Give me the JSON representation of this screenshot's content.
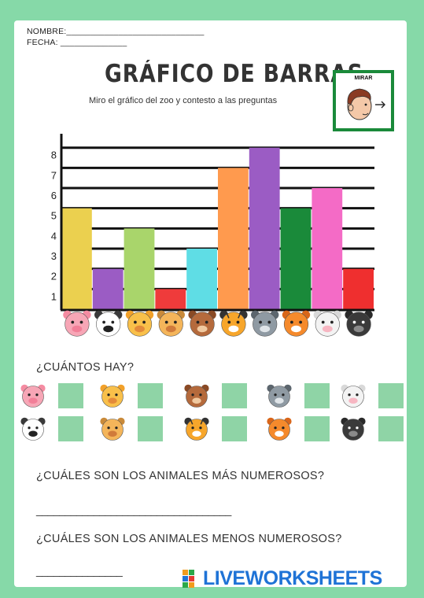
{
  "header": {
    "nombre": "NOMBRE:_____________________________",
    "fecha": "FECHA: ______________"
  },
  "title": "GRÁFICO DE BARRAS",
  "subtitle": "Miro el gráfico del zoo y contesto a las preguntas",
  "badge": {
    "label": "MIRAR",
    "icon": "face-looking-right-icon"
  },
  "chart_data": {
    "type": "bar",
    "categories": [
      "pig",
      "dog",
      "cat",
      "lion",
      "bear",
      "tiger",
      "wolf",
      "fox",
      "cow",
      "gorilla"
    ],
    "values": [
      5,
      2,
      4,
      1,
      3,
      7,
      8,
      5,
      6,
      2
    ],
    "colors": [
      "#ebd04f",
      "#9b5cc4",
      "#a9d56b",
      "#ef3b3b",
      "#5fdde5",
      "#ff9a4e",
      "#9b5cc4",
      "#1a8a3a",
      "#f46bc6",
      "#ef2f2f"
    ],
    "yticks": [
      "1",
      "2",
      "3",
      "4",
      "5",
      "6",
      "7",
      "8"
    ],
    "ylim": [
      0,
      8.3
    ]
  },
  "questions": {
    "count": "¿CUÁNTOS HAY?",
    "most": "¿CUÁLES SON LOS ANIMALES MÁS NUMEROSOS?",
    "least": "¿CUÁLES SON LOS ANIMALES MENOS NUMEROSOS?",
    "answer_line_1": "__________________________________",
    "answer_line_2": "_______________"
  },
  "count_grid": [
    {
      "animal": "pig"
    },
    {
      "animal": "cat"
    },
    {
      "animal": "bear"
    },
    {
      "animal": "wolf"
    },
    {
      "animal": "cow"
    },
    {
      "animal": "dog"
    },
    {
      "animal": "lion"
    },
    {
      "animal": "tiger"
    },
    {
      "animal": "fox"
    },
    {
      "animal": "gorilla"
    }
  ],
  "watermark": "LIVEWORKSHEETS"
}
